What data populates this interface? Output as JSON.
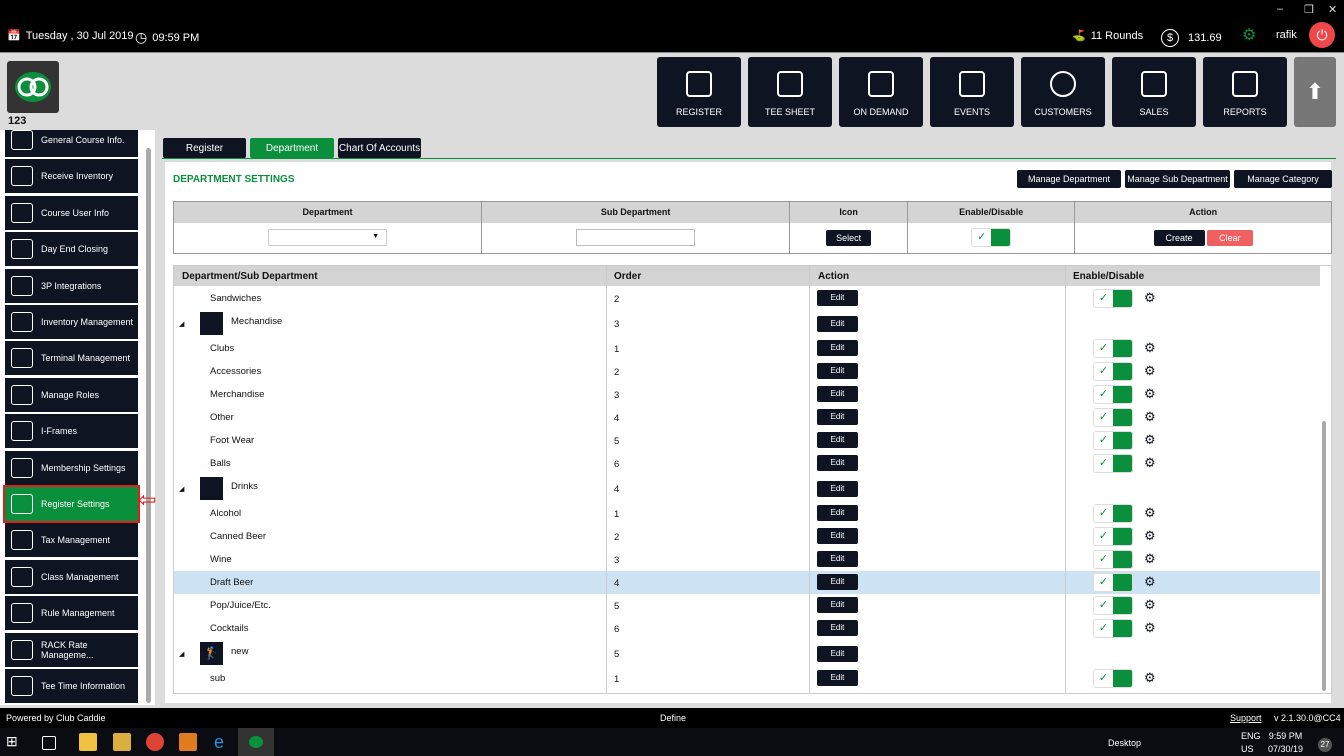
{
  "topbar": {
    "date": "Tuesday ,  30 Jul 2019",
    "time": "09:59 PM",
    "rounds": "11 Rounds",
    "balance": "131.69",
    "user": "rafik",
    "icons": [
      "calendar-icon",
      "clock-icon",
      "golf-flag-icon",
      "dollar-icon",
      "gear-icon",
      "power-icon"
    ]
  },
  "header": {
    "course_id": "123",
    "nav": [
      "REGISTER",
      "TEE SHEET",
      "ON DEMAND",
      "EVENTS",
      "CUSTOMERS",
      "SALES",
      "REPORTS"
    ]
  },
  "sidebar": {
    "items": [
      "General Course Info.",
      "Receive Inventory",
      "Course User Info",
      "Day End Closing",
      "3P Integrations",
      "Inventory Management",
      "Terminal Management",
      "Manage Roles",
      "I-Frames",
      "Membership Settings",
      "Register Settings",
      "Tax Management",
      "Class Management",
      "Rule Management",
      "RACK Rate Manageme...",
      "Tee Time Information"
    ],
    "active": "Register Settings"
  },
  "tabs": [
    "Register",
    "Department",
    "Chart Of Accounts"
  ],
  "active_tab": "Department",
  "settings": {
    "title": "DEPARTMENT SETTINGS",
    "manage_buttons": [
      "Manage Department",
      "Manage Sub Department",
      "Manage Category"
    ],
    "form_headers": [
      "Department",
      "Sub Department",
      "Icon",
      "Enable/Disable",
      "Action"
    ],
    "department_value": "",
    "sub_department_value": "",
    "select_label": "Select",
    "enabled": true,
    "create_label": "Create",
    "clear_label": "Clear"
  },
  "grid": {
    "headers": [
      "Department/Sub Department",
      "Order",
      "Action",
      "Enable/Disable"
    ],
    "edit_label": "Edit",
    "rows": [
      {
        "name": "Sandwiches",
        "order": "2",
        "type": "sub",
        "enabled": true
      },
      {
        "name": "Mechandise",
        "order": "3",
        "type": "parent"
      },
      {
        "name": "Clubs",
        "order": "1",
        "type": "sub",
        "enabled": true
      },
      {
        "name": "Accessories",
        "order": "2",
        "type": "sub",
        "enabled": true
      },
      {
        "name": "Merchandise",
        "order": "3",
        "type": "sub",
        "enabled": true
      },
      {
        "name": "Other",
        "order": "4",
        "type": "sub",
        "enabled": true
      },
      {
        "name": "Foot Wear",
        "order": "5",
        "type": "sub",
        "enabled": true
      },
      {
        "name": "Balls",
        "order": "6",
        "type": "sub",
        "enabled": true
      },
      {
        "name": "Drinks",
        "order": "4",
        "type": "parent"
      },
      {
        "name": "Alcohol",
        "order": "1",
        "type": "sub",
        "enabled": true
      },
      {
        "name": "Canned Beer",
        "order": "2",
        "type": "sub",
        "enabled": true
      },
      {
        "name": "Wine",
        "order": "3",
        "type": "sub",
        "enabled": true
      },
      {
        "name": "Draft Beer",
        "order": "4",
        "type": "sub",
        "enabled": true,
        "selected": true
      },
      {
        "name": "Pop/Juice/Etc.",
        "order": "5",
        "type": "sub",
        "enabled": true
      },
      {
        "name": "Cocktails",
        "order": "6",
        "type": "sub",
        "enabled": true
      },
      {
        "name": "new",
        "order": "5",
        "type": "parent",
        "icon": "golfer-icon"
      },
      {
        "name": "sub",
        "order": "1",
        "type": "sub",
        "enabled": true
      }
    ]
  },
  "footer": {
    "powered": "Powered by Club Caddie",
    "center": "Define",
    "support": "Support",
    "version": "v 2.1.30.0@CC4"
  },
  "taskbar": {
    "desktop": "Desktop",
    "lang1": "ENG",
    "lang2": "US",
    "time": "9:59 PM",
    "date": "07/30/19",
    "notifications": "27"
  },
  "colors": {
    "accent": "#0a8f3c",
    "dark": "#0f1422",
    "danger": "#f06060"
  }
}
